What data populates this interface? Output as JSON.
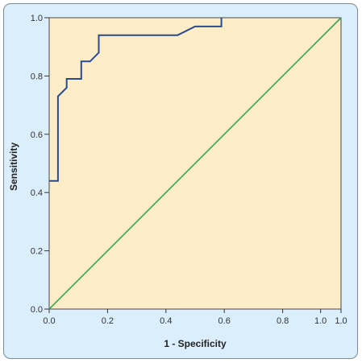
{
  "chart_data": {
    "type": "line",
    "title": "",
    "xlabel": "1 - Specificity",
    "ylabel": "Sensitivity",
    "xlim": [
      0,
      1
    ],
    "ylim": [
      0,
      1
    ],
    "x_ticks": [
      "0.0",
      "0.2",
      "0.4",
      "0.6",
      "0.8",
      "1.0",
      "1.0"
    ],
    "y_ticks": [
      "0.0",
      "0.2",
      "0.4",
      "0.6",
      "0.8",
      "1.0"
    ],
    "grid": false,
    "plot_background": "#fcecc8",
    "frame_background": "#dbeefb",
    "series": [
      {
        "color": "#2a4a8f",
        "style": "step",
        "x": [
          0.0,
          0.03,
          0.03,
          0.06,
          0.06,
          0.07,
          0.11,
          0.11,
          0.14,
          0.17,
          0.17,
          0.44,
          0.5,
          0.59,
          0.59
        ],
        "y": [
          0.44,
          0.44,
          0.73,
          0.76,
          0.79,
          0.79,
          0.79,
          0.85,
          0.85,
          0.88,
          0.94,
          0.94,
          0.97,
          0.97,
          1.0
        ]
      },
      {
        "color": "#2fa84f",
        "style": "line",
        "x": [
          0,
          1
        ],
        "y": [
          0,
          1
        ]
      }
    ]
  }
}
